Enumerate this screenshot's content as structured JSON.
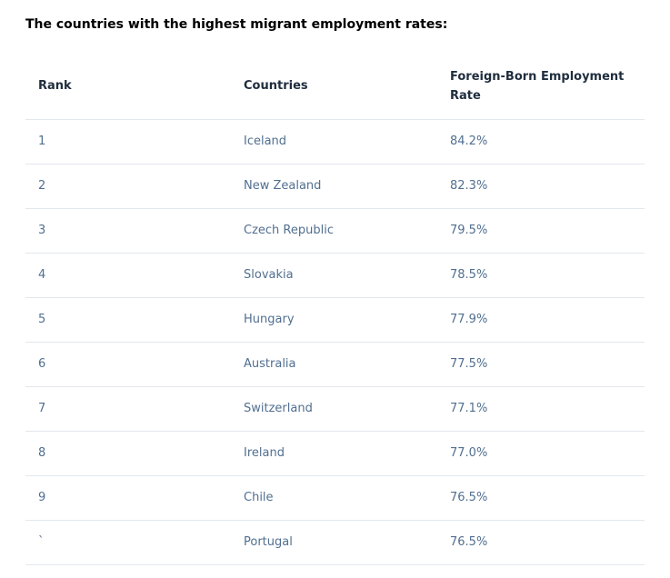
{
  "heading": "The countries with the highest migrant employment rates:",
  "table": {
    "headers": [
      "Rank",
      "Countries",
      "Foreign-Born Employment Rate"
    ],
    "rows": [
      {
        "rank": "1",
        "country": "Iceland",
        "rate": "84.2%"
      },
      {
        "rank": "2",
        "country": "New Zealand",
        "rate": "82.3%"
      },
      {
        "rank": "3",
        "country": "Czech Republic",
        "rate": "79.5%"
      },
      {
        "rank": "4",
        "country": "Slovakia",
        "rate": "78.5%"
      },
      {
        "rank": "5",
        "country": "Hungary",
        "rate": "77.9%"
      },
      {
        "rank": "6",
        "country": "Australia",
        "rate": "77.5%"
      },
      {
        "rank": "7",
        "country": "Switzerland",
        "rate": "77.1%"
      },
      {
        "rank": "8",
        "country": "Ireland",
        "rate": "77.0%"
      },
      {
        "rank": "9",
        "country": "Chile",
        "rate": "76.5%"
      },
      {
        "rank": "`",
        "country": "Portugal",
        "rate": "76.5%"
      }
    ]
  },
  "colors": {
    "heading_text": "#000000",
    "header_text": "#1f2d3d",
    "cell_text": "#516f90",
    "row_divider": "#e3e8ee"
  }
}
